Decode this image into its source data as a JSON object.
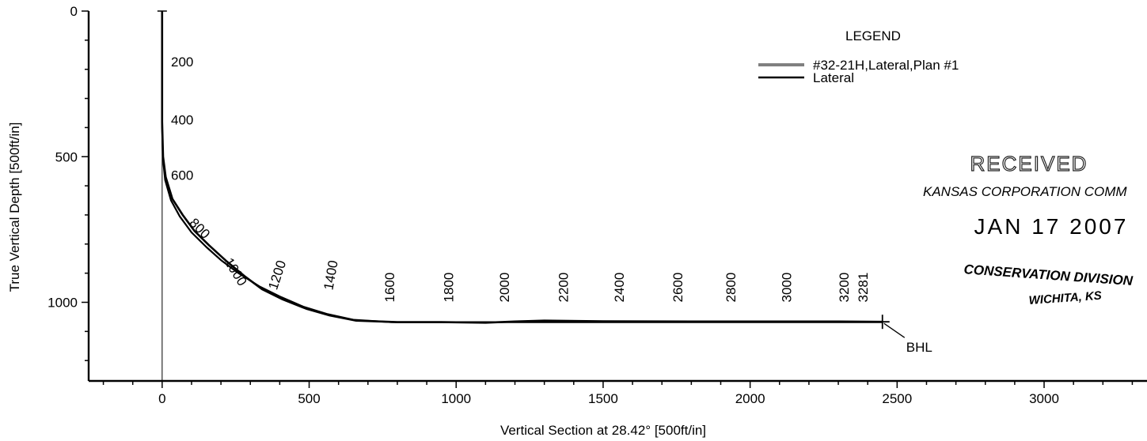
{
  "chart_data": {
    "type": "line",
    "xlabel": "Vertical Section at 28.42° [500ft/in]",
    "ylabel": "True Vertical Depth [500ft/in]",
    "xlim": [
      -250,
      3350
    ],
    "ylim": [
      1270,
      0
    ],
    "x_ticks": [
      0,
      500,
      1000,
      1500,
      2000,
      2500,
      3000
    ],
    "y_ticks": [
      0,
      500,
      1000
    ],
    "legend": {
      "title": "LEGEND",
      "placement": "top-right",
      "entries": [
        "#32-21H,Lateral,Plan #1",
        "Lateral"
      ]
    },
    "series": [
      {
        "name": "#32-21H,Lateral,Plan #1",
        "x": [
          0,
          0,
          2,
          10,
          30,
          60,
          100,
          150,
          200,
          260,
          330,
          400,
          480,
          560,
          650,
          780,
          1000,
          1200,
          1500,
          2000,
          2400,
          2450
        ],
        "y": [
          0,
          400,
          500,
          580,
          650,
          705,
          760,
          810,
          855,
          900,
          945,
          980,
          1015,
          1040,
          1060,
          1068,
          1068,
          1068,
          1068,
          1068,
          1068,
          1068
        ]
      },
      {
        "name": "Lateral",
        "x": [
          0,
          0,
          3,
          12,
          35,
          70,
          110,
          160,
          220,
          280,
          340,
          410,
          490,
          570,
          660,
          800,
          950,
          1100,
          1150,
          1200,
          1300,
          1500,
          1800,
          2000,
          2300,
          2450
        ],
        "y": [
          0,
          380,
          500,
          570,
          645,
          700,
          755,
          805,
          860,
          910,
          955,
          990,
          1022,
          1045,
          1063,
          1068,
          1068,
          1070,
          1068,
          1066,
          1063,
          1065,
          1066,
          1066,
          1066,
          1067
        ]
      }
    ],
    "md_labels": [
      {
        "text": "200",
        "x": 30,
        "y": 190,
        "rotate": 0
      },
      {
        "text": "400",
        "x": 30,
        "y": 390,
        "rotate": 0
      },
      {
        "text": "600",
        "x": 30,
        "y": 580,
        "rotate": 0
      },
      {
        "text": "800",
        "x": 90,
        "y": 730,
        "rotate": 45
      },
      {
        "text": "1000",
        "x": 210,
        "y": 860,
        "rotate": 58
      },
      {
        "text": "1200",
        "x": 390,
        "y": 960,
        "rotate": -72
      },
      {
        "text": "1400",
        "x": 580,
        "y": 960,
        "rotate": -80
      },
      {
        "text": "1600",
        "x": 790,
        "y": 1000,
        "rotate": -90
      },
      {
        "text": "1800",
        "x": 990,
        "y": 1000,
        "rotate": -90
      },
      {
        "text": "2000",
        "x": 1180,
        "y": 1000,
        "rotate": -90
      },
      {
        "text": "2200",
        "x": 1380,
        "y": 1000,
        "rotate": -90
      },
      {
        "text": "2400",
        "x": 1570,
        "y": 1000,
        "rotate": -90
      },
      {
        "text": "2600",
        "x": 1770,
        "y": 1000,
        "rotate": -90
      },
      {
        "text": "2800",
        "x": 1950,
        "y": 1000,
        "rotate": -90
      },
      {
        "text": "3000",
        "x": 2140,
        "y": 1000,
        "rotate": -90
      },
      {
        "text": "3200",
        "x": 2335,
        "y": 1000,
        "rotate": -90
      },
      {
        "text": "3281",
        "x": 2400,
        "y": 1000,
        "rotate": -90
      }
    ],
    "annotations": [
      {
        "text": "BHL",
        "x": 2450,
        "y": 1067
      }
    ]
  },
  "stamp": {
    "line1": "RECEIVED",
    "line2": "KANSAS CORPORATION COMM",
    "date": "JAN 17 2007",
    "line4": "CONSERVATION DIVISION",
    "line5": "WICHITA, KS"
  }
}
